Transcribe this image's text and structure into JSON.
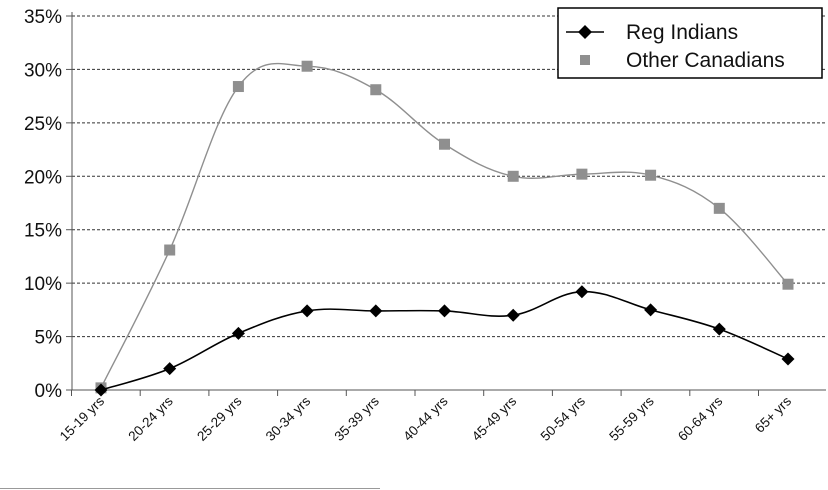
{
  "chart_data": {
    "type": "line",
    "categories": [
      "15-19 yrs",
      "20-24 yrs",
      "25-29 yrs",
      "30-34 yrs",
      "35-39 yrs",
      "40-44 yrs",
      "45-49 yrs",
      "50-54 yrs",
      "55-59 yrs",
      "60-64 yrs",
      "65+ yrs"
    ],
    "series": [
      {
        "name": "Reg Indians",
        "values": [
          0,
          2.0,
          5.3,
          7.4,
          7.4,
          7.4,
          7.0,
          9.2,
          7.5,
          5.7,
          2.9
        ],
        "color": "#000000",
        "marker": "diamond"
      },
      {
        "name": "Other Canadians",
        "values": [
          0.2,
          13.1,
          28.4,
          30.3,
          28.1,
          23.0,
          20.0,
          20.2,
          20.1,
          17.0,
          9.9
        ],
        "color": "#8f8f8f",
        "marker": "square"
      }
    ],
    "y_ticks": [
      "0%",
      "5%",
      "10%",
      "15%",
      "20%",
      "25%",
      "30%",
      "35%"
    ],
    "ylim": [
      0,
      35
    ],
    "grid": "horizontal dashed",
    "legend_position": "top-right",
    "title": "",
    "xlabel": "",
    "ylabel": ""
  }
}
